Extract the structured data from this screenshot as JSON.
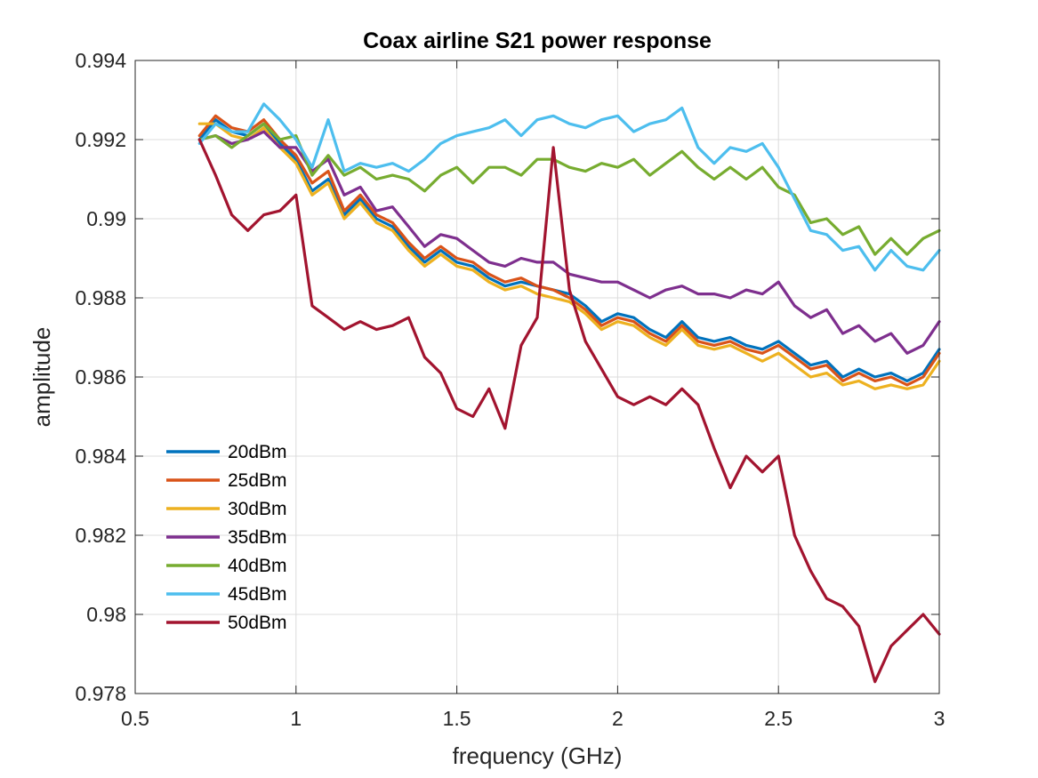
{
  "chart_data": {
    "type": "line",
    "title": "Coax airline S21 power response",
    "xlabel": "frequency (GHz)",
    "ylabel": "amplitude",
    "xlim": [
      0.5,
      3
    ],
    "ylim": [
      0.978,
      0.994
    ],
    "xticks": [
      0.5,
      1,
      1.5,
      2,
      2.5,
      3
    ],
    "xtick_labels": [
      "0.5",
      "1",
      "1.5",
      "2",
      "2.5",
      "3"
    ],
    "yticks": [
      0.978,
      0.98,
      0.982,
      0.984,
      0.986,
      0.988,
      0.99,
      0.992,
      0.994
    ],
    "ytick_labels": [
      "0.978",
      "0.98",
      "0.982",
      "0.984",
      "0.986",
      "0.988",
      "0.99",
      "0.992",
      "0.994"
    ],
    "grid": true,
    "legend_position": "lower-left",
    "x": [
      0.7,
      0.75,
      0.8,
      0.85,
      0.9,
      0.95,
      1.0,
      1.05,
      1.1,
      1.15,
      1.2,
      1.25,
      1.3,
      1.35,
      1.4,
      1.45,
      1.5,
      1.55,
      1.6,
      1.65,
      1.7,
      1.75,
      1.8,
      1.85,
      1.9,
      1.95,
      2.0,
      2.05,
      2.1,
      2.15,
      2.2,
      2.25,
      2.3,
      2.35,
      2.4,
      2.45,
      2.5,
      2.55,
      2.6,
      2.65,
      2.7,
      2.75,
      2.8,
      2.85,
      2.9,
      2.95,
      3.0
    ],
    "series": [
      {
        "name": "20dBm",
        "color": "#0072BD",
        "values": [
          0.992,
          0.9925,
          0.9922,
          0.9921,
          0.9924,
          0.9919,
          0.9915,
          0.9907,
          0.991,
          0.9901,
          0.9905,
          0.99,
          0.9898,
          0.9893,
          0.9889,
          0.9892,
          0.9889,
          0.9888,
          0.9885,
          0.9883,
          0.9884,
          0.9883,
          0.9882,
          0.9881,
          0.9878,
          0.9874,
          0.9876,
          0.9875,
          0.9872,
          0.987,
          0.9874,
          0.987,
          0.9869,
          0.987,
          0.9868,
          0.9867,
          0.9869,
          0.9866,
          0.9863,
          0.9864,
          0.986,
          0.9862,
          0.986,
          0.9861,
          0.9859,
          0.9861,
          0.9867
        ]
      },
      {
        "name": "25dBm",
        "color": "#D95319",
        "values": [
          0.9921,
          0.9926,
          0.9923,
          0.9922,
          0.9925,
          0.992,
          0.9916,
          0.9909,
          0.9912,
          0.9902,
          0.9906,
          0.9901,
          0.9899,
          0.9894,
          0.989,
          0.9893,
          0.989,
          0.9889,
          0.9886,
          0.9884,
          0.9885,
          0.9883,
          0.9882,
          0.988,
          0.9877,
          0.9873,
          0.9875,
          0.9874,
          0.9871,
          0.9869,
          0.9873,
          0.9869,
          0.9868,
          0.9869,
          0.9867,
          0.9866,
          0.9868,
          0.9865,
          0.9862,
          0.9863,
          0.9859,
          0.9861,
          0.9859,
          0.986,
          0.9858,
          0.986,
          0.9866
        ]
      },
      {
        "name": "30dBm",
        "color": "#EDB120",
        "values": [
          0.9924,
          0.9924,
          0.9921,
          0.992,
          0.9923,
          0.9918,
          0.9914,
          0.9906,
          0.9909,
          0.99,
          0.9904,
          0.9899,
          0.9897,
          0.9892,
          0.9888,
          0.9891,
          0.9888,
          0.9887,
          0.9884,
          0.9882,
          0.9883,
          0.9881,
          0.988,
          0.9879,
          0.9876,
          0.9872,
          0.9874,
          0.9873,
          0.987,
          0.9868,
          0.9872,
          0.9868,
          0.9867,
          0.9868,
          0.9866,
          0.9864,
          0.9866,
          0.9863,
          0.986,
          0.9861,
          0.9858,
          0.9859,
          0.9857,
          0.9858,
          0.9857,
          0.9858,
          0.9864
        ]
      },
      {
        "name": "35dBm",
        "color": "#7E2F8E",
        "values": [
          0.992,
          0.9921,
          0.9919,
          0.992,
          0.9922,
          0.9918,
          0.9918,
          0.9912,
          0.9915,
          0.9906,
          0.9908,
          0.9902,
          0.9903,
          0.9898,
          0.9893,
          0.9896,
          0.9895,
          0.9892,
          0.9889,
          0.9888,
          0.989,
          0.9889,
          0.9889,
          0.9886,
          0.9885,
          0.9884,
          0.9884,
          0.9882,
          0.988,
          0.9882,
          0.9883,
          0.9881,
          0.9881,
          0.988,
          0.9882,
          0.9881,
          0.9884,
          0.9878,
          0.9875,
          0.9877,
          0.9871,
          0.9873,
          0.9869,
          0.9871,
          0.9866,
          0.9868,
          0.9874
        ]
      },
      {
        "name": "40dBm",
        "color": "#77AC30",
        "values": [
          0.992,
          0.9921,
          0.9918,
          0.9921,
          0.9924,
          0.992,
          0.9921,
          0.9911,
          0.9916,
          0.9911,
          0.9913,
          0.991,
          0.9911,
          0.991,
          0.9907,
          0.9911,
          0.9913,
          0.9909,
          0.9913,
          0.9913,
          0.9911,
          0.9915,
          0.9915,
          0.9913,
          0.9912,
          0.9914,
          0.9913,
          0.9915,
          0.9911,
          0.9914,
          0.9917,
          0.9913,
          0.991,
          0.9913,
          0.991,
          0.9913,
          0.9908,
          0.9906,
          0.9899,
          0.99,
          0.9896,
          0.9898,
          0.9891,
          0.9895,
          0.9891,
          0.9895,
          0.9897
        ]
      },
      {
        "name": "45dBm",
        "color": "#4DBEEE",
        "values": [
          0.9919,
          0.9924,
          0.9922,
          0.9922,
          0.9929,
          0.9925,
          0.992,
          0.9913,
          0.9925,
          0.9912,
          0.9914,
          0.9913,
          0.9914,
          0.9912,
          0.9915,
          0.9919,
          0.9921,
          0.9922,
          0.9923,
          0.9925,
          0.9921,
          0.9925,
          0.9926,
          0.9924,
          0.9923,
          0.9925,
          0.9926,
          0.9922,
          0.9924,
          0.9925,
          0.9928,
          0.9918,
          0.9914,
          0.9918,
          0.9917,
          0.9919,
          0.9913,
          0.9905,
          0.9897,
          0.9896,
          0.9892,
          0.9893,
          0.9887,
          0.9892,
          0.9888,
          0.9887,
          0.9892
        ]
      },
      {
        "name": "50dBm",
        "color": "#A2142F",
        "values": [
          0.992,
          0.9911,
          0.9901,
          0.9897,
          0.9901,
          0.9902,
          0.9906,
          0.9878,
          0.9875,
          0.9872,
          0.9874,
          0.9872,
          0.9873,
          0.9875,
          0.9865,
          0.9861,
          0.9852,
          0.985,
          0.9857,
          0.9847,
          0.9868,
          0.9875,
          0.9918,
          0.9882,
          0.9869,
          0.9862,
          0.9855,
          0.9853,
          0.9855,
          0.9853,
          0.9857,
          0.9853,
          0.9842,
          0.9832,
          0.984,
          0.9836,
          0.984,
          0.982,
          0.9811,
          0.9804,
          0.9802,
          0.9797,
          0.9783,
          0.9792,
          0.9796,
          0.98,
          0.9795
        ]
      }
    ]
  }
}
